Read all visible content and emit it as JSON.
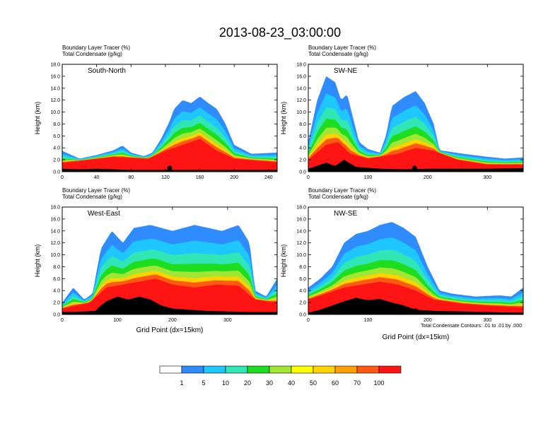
{
  "title": "2013-08-23_03:00:00",
  "palette": [
    "#ffffff",
    "#2f8cff",
    "#1ec8ff",
    "#2fe6b4",
    "#1edc1e",
    "#a0e632",
    "#ffff00",
    "#ffd200",
    "#ffa000",
    "#ff5a14",
    "#ff1414"
  ],
  "colorbar": {
    "labels": [
      "1",
      "5",
      "10",
      "20",
      "30",
      "40",
      "50",
      "60",
      "70",
      "100"
    ]
  },
  "contour_note": "Total Condensate Contours: .01 to .01 by .000",
  "chart_data": [
    {
      "type": "heatmap",
      "panel_label": "South-North",
      "subtitle_1": "Boundary Layer Tracer   (%)",
      "subtitle_2": "Total Condensate   (g/kg)",
      "ylabel": "Height (km)",
      "xlabel": "",
      "xlim": [
        0,
        250
      ],
      "ylim": [
        0,
        18
      ],
      "xticks": [
        0,
        40,
        80,
        120,
        160,
        200,
        240
      ],
      "yticks": [
        "0.0",
        "2.0",
        "4.0",
        "6.0",
        "8.0",
        "10.0",
        "12.0",
        "14.0",
        "16.0",
        "18.0"
      ],
      "terrain": [
        [
          0,
          0.5
        ],
        [
          20,
          0.4
        ],
        [
          40,
          0.5
        ],
        [
          60,
          0.4
        ],
        [
          80,
          0.3
        ],
        [
          100,
          0.3
        ],
        [
          120,
          0.3
        ],
        [
          140,
          0.3
        ],
        [
          160,
          0.3
        ],
        [
          200,
          0.3
        ],
        [
          250,
          0.3
        ]
      ],
      "tracer_top": [
        [
          0,
          3.5
        ],
        [
          20,
          2.2
        ],
        [
          40,
          2.8
        ],
        [
          60,
          3.6
        ],
        [
          70,
          4.4
        ],
        [
          80,
          3.2
        ],
        [
          95,
          2.6
        ],
        [
          105,
          3.2
        ],
        [
          115,
          5.5
        ],
        [
          125,
          8.5
        ],
        [
          130,
          10.5
        ],
        [
          140,
          12
        ],
        [
          150,
          11.5
        ],
        [
          160,
          12.6
        ],
        [
          170,
          11.5
        ],
        [
          180,
          10.5
        ],
        [
          190,
          8
        ],
        [
          200,
          4.5
        ],
        [
          220,
          3
        ],
        [
          250,
          3.2
        ]
      ],
      "tracer_high": [
        [
          0,
          1.5
        ],
        [
          60,
          2.5
        ],
        [
          100,
          2.2
        ],
        [
          120,
          3.5
        ],
        [
          140,
          4.5
        ],
        [
          160,
          5.5
        ],
        [
          180,
          3.5
        ],
        [
          200,
          2.2
        ],
        [
          250,
          1.6
        ]
      ],
      "marker_x": 125
    },
    {
      "type": "heatmap",
      "panel_label": "SW-NE",
      "subtitle_1": "Boundary Layer Tracer   (%)",
      "subtitle_2": "Total Condensate   (g/kg)",
      "ylabel": "Height (km)",
      "xlabel": "",
      "xlim": [
        0,
        360
      ],
      "ylim": [
        0,
        18
      ],
      "xticks": [
        0,
        100,
        200,
        300
      ],
      "yticks": [
        "0.0",
        "2.0",
        "4.0",
        "6.0",
        "8.0",
        "10.0",
        "12.0",
        "14.0",
        "16.0",
        "18.0"
      ],
      "terrain": [
        [
          0,
          0.5
        ],
        [
          30,
          1.5
        ],
        [
          45,
          1
        ],
        [
          60,
          2
        ],
        [
          80,
          0.8
        ],
        [
          120,
          0.5
        ],
        [
          160,
          0.4
        ],
        [
          200,
          0.5
        ],
        [
          250,
          0.5
        ],
        [
          300,
          0.5
        ],
        [
          360,
          0.6
        ]
      ],
      "tracer_top": [
        [
          0,
          5
        ],
        [
          15,
          12
        ],
        [
          30,
          16
        ],
        [
          45,
          15
        ],
        [
          55,
          12
        ],
        [
          65,
          13
        ],
        [
          75,
          9
        ],
        [
          85,
          5
        ],
        [
          100,
          3.8
        ],
        [
          120,
          3.2
        ],
        [
          130,
          6
        ],
        [
          140,
          11
        ],
        [
          160,
          12.5
        ],
        [
          180,
          13.5
        ],
        [
          195,
          11.5
        ],
        [
          210,
          8
        ],
        [
          220,
          3.6
        ],
        [
          260,
          3
        ],
        [
          300,
          2.5
        ],
        [
          330,
          2.2
        ],
        [
          360,
          2.4
        ]
      ],
      "tracer_high": [
        [
          0,
          2
        ],
        [
          30,
          4.5
        ],
        [
          50,
          5
        ],
        [
          70,
          3
        ],
        [
          100,
          2.2
        ],
        [
          150,
          3
        ],
        [
          180,
          4
        ],
        [
          210,
          3.5
        ],
        [
          250,
          2
        ],
        [
          300,
          1.2
        ],
        [
          360,
          1.2
        ]
      ],
      "marker_x": 178
    },
    {
      "type": "heatmap",
      "panel_label": "West-East",
      "subtitle_1": "Boundary Layer Tracer   (%)",
      "subtitle_2": "Total Condensate   (g/kg)",
      "ylabel": "Height (km)",
      "xlabel": "Grid Point (dx=15km)",
      "xlim": [
        0,
        390
      ],
      "ylim": [
        0,
        18
      ],
      "xticks": [
        0,
        100,
        200,
        300
      ],
      "yticks": [
        "0.0",
        "2.0",
        "4.0",
        "6.0",
        "8.0",
        "10.0",
        "12.0",
        "14.0",
        "16.0",
        "18.0"
      ],
      "terrain": [
        [
          0,
          0.4
        ],
        [
          40,
          0.5
        ],
        [
          60,
          0.6
        ],
        [
          70,
          1.5
        ],
        [
          80,
          2.2
        ],
        [
          100,
          3
        ],
        [
          120,
          2.5
        ],
        [
          140,
          3
        ],
        [
          160,
          2.5
        ],
        [
          180,
          1.5
        ],
        [
          200,
          1
        ],
        [
          230,
          0.8
        ],
        [
          260,
          0.6
        ],
        [
          300,
          0.5
        ],
        [
          340,
          0.4
        ],
        [
          390,
          0.4
        ]
      ],
      "tracer_top": [
        [
          0,
          2
        ],
        [
          20,
          4.5
        ],
        [
          40,
          2.5
        ],
        [
          55,
          3.5
        ],
        [
          70,
          11
        ],
        [
          90,
          14
        ],
        [
          110,
          12
        ],
        [
          130,
          14.5
        ],
        [
          160,
          15
        ],
        [
          200,
          14
        ],
        [
          240,
          15
        ],
        [
          290,
          14
        ],
        [
          320,
          15
        ],
        [
          340,
          12
        ],
        [
          350,
          4
        ],
        [
          370,
          3
        ],
        [
          390,
          6
        ]
      ],
      "tracer_high": [
        [
          0,
          1
        ],
        [
          50,
          2
        ],
        [
          80,
          4.5
        ],
        [
          110,
          5
        ],
        [
          140,
          5.5
        ],
        [
          170,
          6
        ],
        [
          200,
          5
        ],
        [
          240,
          4.5
        ],
        [
          280,
          5
        ],
        [
          320,
          4.8
        ],
        [
          350,
          2.5
        ],
        [
          390,
          2
        ]
      ],
      "marker_x": 193
    },
    {
      "type": "heatmap",
      "panel_label": "NW-SE",
      "subtitle_1": "Boundary Layer Tracer   (%)",
      "subtitle_2": "Total Condensate   (g/kg)",
      "ylabel": "Height (km)",
      "xlabel": "Grid Point (dx=15km)",
      "xlim": [
        0,
        360
      ],
      "ylim": [
        0,
        18
      ],
      "xticks": [
        0,
        100,
        200,
        300
      ],
      "yticks": [
        "0.0",
        "2.0",
        "4.0",
        "6.0",
        "8.0",
        "10.0",
        "12.0",
        "14.0",
        "16.0",
        "18.0"
      ],
      "terrain": [
        [
          0,
          0.3
        ],
        [
          20,
          0.8
        ],
        [
          40,
          1.5
        ],
        [
          60,
          2.2
        ],
        [
          80,
          2.8
        ],
        [
          100,
          2.4
        ],
        [
          120,
          2.6
        ],
        [
          140,
          2
        ],
        [
          160,
          1.5
        ],
        [
          180,
          0.8
        ],
        [
          210,
          0.6
        ],
        [
          260,
          0.5
        ],
        [
          300,
          0.4
        ],
        [
          360,
          0.3
        ]
      ],
      "tracer_top": [
        [
          0,
          4.5
        ],
        [
          20,
          6
        ],
        [
          40,
          8
        ],
        [
          60,
          12
        ],
        [
          80,
          13.5
        ],
        [
          100,
          14
        ],
        [
          120,
          15
        ],
        [
          140,
          15.5
        ],
        [
          160,
          14.5
        ],
        [
          180,
          13
        ],
        [
          200,
          8
        ],
        [
          220,
          4
        ],
        [
          240,
          3.5
        ],
        [
          280,
          3
        ],
        [
          320,
          3.2
        ],
        [
          340,
          3
        ],
        [
          360,
          4.5
        ]
      ],
      "tracer_high": [
        [
          0,
          2.5
        ],
        [
          30,
          3.5
        ],
        [
          60,
          4.5
        ],
        [
          90,
          5
        ],
        [
          120,
          5.5
        ],
        [
          150,
          5
        ],
        [
          180,
          4
        ],
        [
          210,
          2.5
        ],
        [
          260,
          1.8
        ],
        [
          300,
          1.5
        ],
        [
          360,
          1.2
        ]
      ],
      "marker_x": 180
    }
  ]
}
